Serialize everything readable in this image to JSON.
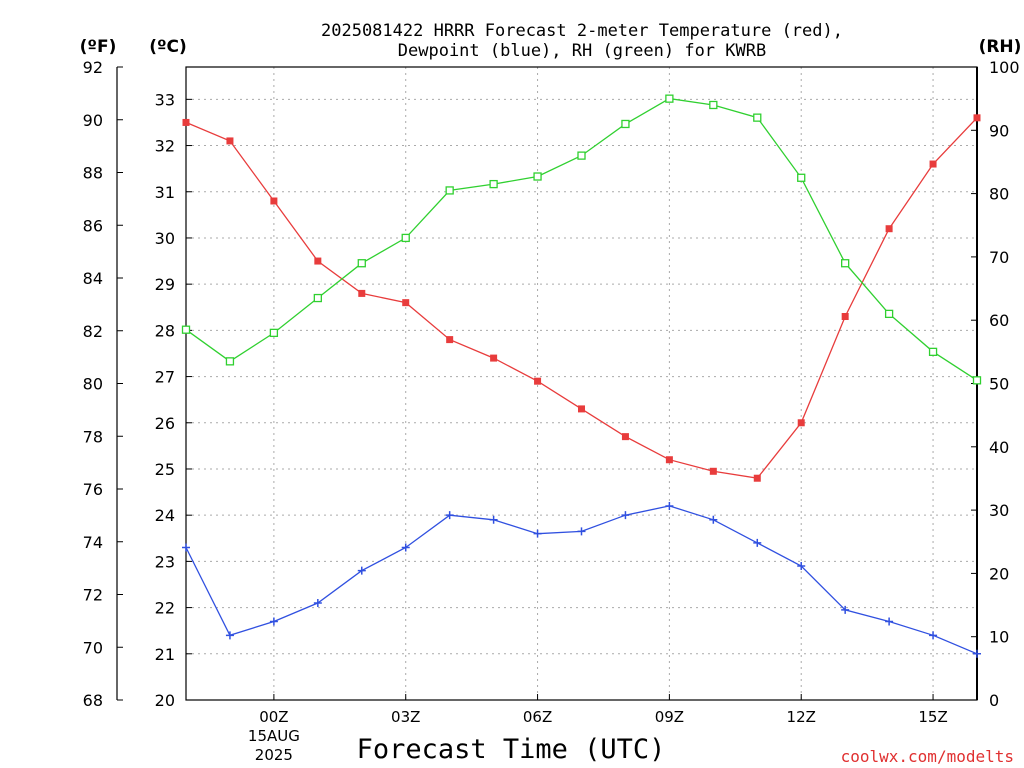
{
  "chart_data": {
    "type": "line",
    "title_line1": "2025081422 HRRR Forecast 2-meter Temperature (red),",
    "title_line2": "Dewpoint (blue), RH (green) for KWRB",
    "unit_f": "(ºF)",
    "unit_c": "(ºC)",
    "unit_rh": "(RH)",
    "xlabel": "Forecast Time (UTC)",
    "credit": "coolwx.com/modelts",
    "x_hours": [
      22,
      23,
      0,
      1,
      2,
      3,
      4,
      5,
      6,
      7,
      8,
      9,
      10,
      11,
      12,
      13,
      14,
      15,
      16
    ],
    "x_ticks": [
      {
        "hour": 0,
        "label": "00Z",
        "sub1": "15AUG",
        "sub2": "2025"
      },
      {
        "hour": 3,
        "label": "03Z"
      },
      {
        "hour": 6,
        "label": "06Z"
      },
      {
        "hour": 9,
        "label": "09Z"
      },
      {
        "hour": 12,
        "label": "12Z"
      },
      {
        "hour": 15,
        "label": "15Z"
      }
    ],
    "ylim_c": [
      20,
      33.7
    ],
    "ylim_f": [
      68,
      92
    ],
    "ylim_rh": [
      0,
      100
    ],
    "ticks_c": [
      20,
      21,
      22,
      23,
      24,
      25,
      26,
      27,
      28,
      29,
      30,
      31,
      32,
      33
    ],
    "ticks_f": [
      68,
      70,
      72,
      74,
      76,
      78,
      80,
      82,
      84,
      86,
      88,
      90,
      92
    ],
    "ticks_rh": [
      0,
      10,
      20,
      30,
      40,
      50,
      60,
      70,
      80,
      90,
      100
    ],
    "grid": true,
    "series": [
      {
        "name": "Temperature",
        "axis": "c",
        "color": "#e83c3c",
        "marker": "filled-square",
        "values": [
          32.5,
          32.1,
          30.8,
          29.5,
          28.8,
          28.6,
          27.8,
          27.4,
          26.9,
          26.3,
          25.7,
          25.2,
          24.95,
          24.8,
          26.0,
          28.3,
          30.2,
          31.6,
          32.6
        ]
      },
      {
        "name": "Dewpoint",
        "axis": "c",
        "color": "#3050e0",
        "marker": "plus",
        "values": [
          23.3,
          21.4,
          21.7,
          22.1,
          22.8,
          23.3,
          24.0,
          23.9,
          23.6,
          23.65,
          24.0,
          24.2,
          23.9,
          23.4,
          22.9,
          21.95,
          21.7,
          21.4,
          21.0
        ]
      },
      {
        "name": "RH",
        "axis": "rh",
        "color": "#30d030",
        "marker": "open-square",
        "values": [
          58.5,
          53.5,
          58,
          63.5,
          69,
          73,
          80.5,
          81.5,
          82.7,
          86,
          91,
          95,
          94,
          92,
          82.5,
          69,
          61,
          55,
          50.5
        ]
      }
    ]
  }
}
